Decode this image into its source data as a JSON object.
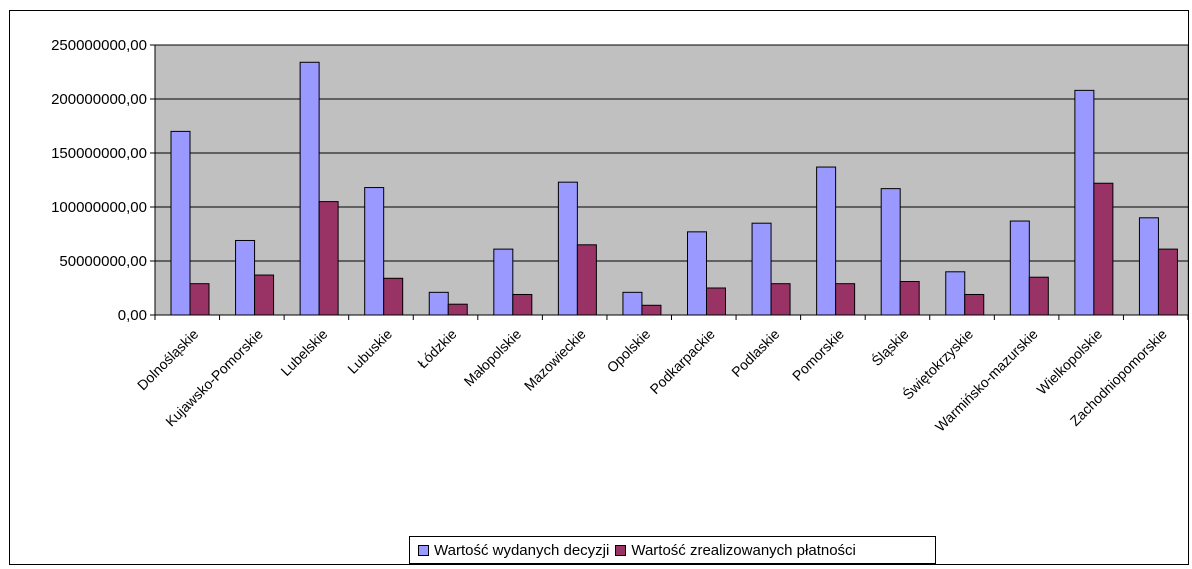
{
  "chart_data": {
    "type": "bar",
    "categories": [
      "Dolnośląskie",
      "Kujawsko-Pomorskie",
      "Lubelskie",
      "Lubuskie",
      "Łódzkie",
      "Małopolskie",
      "Mazowieckie",
      "Opolskie",
      "Podkarpackie",
      "Podlaskie",
      "Pomorskie",
      "Śląskie",
      "Świętokrzyskie",
      "Warmińsko-mazurskie",
      "Wielkopolskie",
      "Zachodniopomorskie"
    ],
    "series": [
      {
        "name": "Wartość wydanych decyzji",
        "color": "#9999ff",
        "values": [
          170000000,
          69000000,
          234000000,
          118000000,
          21000000,
          61000000,
          123000000,
          21000000,
          77000000,
          85000000,
          137000000,
          117000000,
          40000000,
          87000000,
          208000000,
          90000000
        ]
      },
      {
        "name": "Wartość zrealizowanych płatności",
        "color": "#993366",
        "values": [
          29000000,
          37000000,
          105000000,
          34000000,
          10000000,
          19000000,
          65000000,
          9000000,
          25000000,
          29000000,
          29000000,
          31000000,
          19000000,
          35000000,
          122000000,
          61000000
        ]
      }
    ],
    "yticks": [
      "0,00",
      "50000000,00",
      "100000000,00",
      "150000000,00",
      "200000000,00",
      "250000000,00"
    ],
    "ylim": [
      0,
      250000000
    ],
    "title": "",
    "xlabel": "",
    "ylabel": "",
    "grid": true,
    "plot_background": "#c0c0c0",
    "legend_position": "bottom"
  }
}
